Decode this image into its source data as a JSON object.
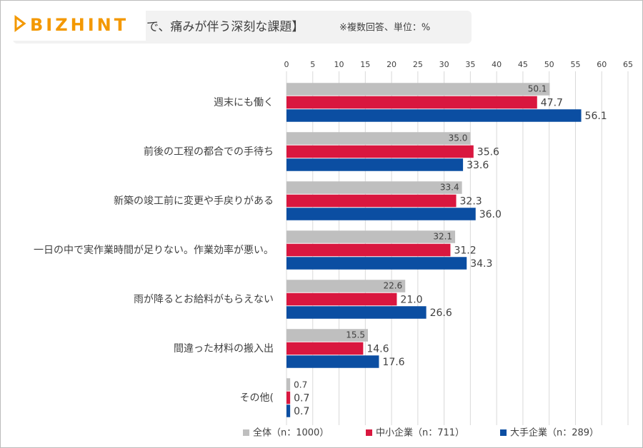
{
  "logo": "BIZHINT",
  "chart_data": {
    "type": "hbar",
    "title": "で、痛みが伴う深刻な課題】",
    "subtitle": "※複数回答、単位：%",
    "categories": [
      "週末にも働く",
      "前後の工程の都合での手待ち",
      "新築の竣工前に変更や手戻りがある",
      "一日の中で実作業時間が足りない。作業効率が悪い。",
      "雨が降るとお給料がもらえない",
      "間違った材料の搬入出",
      "その他("
    ],
    "series": [
      {
        "name": "全体（n：1000）",
        "color": "#bfbfbf",
        "values": [
          50.1,
          35.0,
          33.4,
          32.1,
          22.6,
          15.5,
          0.7
        ],
        "value_labels": [
          "50.1",
          "35.0",
          "33.4",
          "32.1",
          "22.6",
          "15.5",
          "0.7"
        ]
      },
      {
        "name": "中小企業（n：711）",
        "color": "#d9173f",
        "values": [
          47.7,
          35.6,
          32.3,
          31.2,
          21.0,
          14.6,
          0.7
        ],
        "value_labels": [
          "47.7",
          "35.6",
          "32.3",
          "31.2",
          "21.0",
          "14.6",
          "0.7"
        ]
      },
      {
        "name": "大手企業（n：289）",
        "color": "#0b4ea2",
        "values": [
          56.1,
          33.6,
          36.0,
          34.3,
          26.6,
          17.6,
          0.7
        ],
        "value_labels": [
          "56.1",
          "33.6",
          "36.0",
          "34.3",
          "26.6",
          "17.6",
          "0.7"
        ]
      }
    ],
    "xlim": [
      0,
      65
    ],
    "xticks": [
      0,
      5,
      10,
      15,
      20,
      25,
      30,
      35,
      40,
      45,
      50,
      55,
      60,
      65
    ],
    "grid": true,
    "legend": "bottom"
  }
}
